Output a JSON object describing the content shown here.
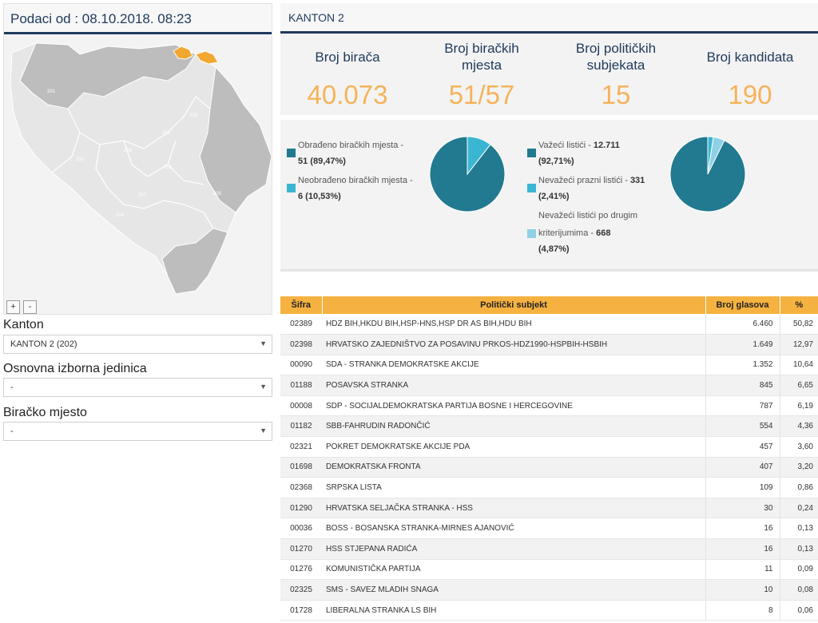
{
  "map": {
    "header": "Podaci od : 08.10.2018. 08:23",
    "zoom_in": "+",
    "zoom_out": "-",
    "region_labels": [
      "201",
      "203",
      "204",
      "205",
      "206",
      "207",
      "208",
      "209",
      "210"
    ],
    "colors": {
      "background": "#f3f3f3",
      "federation": "#e6e6e6",
      "rs": "#bdbdbd",
      "highlight": "#f0a830",
      "border": "#ffffff"
    }
  },
  "filters": {
    "kanton": {
      "label": "Kanton",
      "value": "KANTON 2 (202)"
    },
    "oij": {
      "label": "Osnovna izborna jedinica",
      "value": "-"
    },
    "bm": {
      "label": "Biračko mjesto",
      "value": "-"
    }
  },
  "summary": {
    "title": "KANTON 2",
    "stats": [
      {
        "label": "Broj birača",
        "value": "40.073"
      },
      {
        "label": "Broj biračkih mjesta",
        "value": "51/57"
      },
      {
        "label": "Broj političkih subjekata",
        "value": "15"
      },
      {
        "label": "Broj kandidata",
        "value": "190"
      }
    ]
  },
  "polling_stations": {
    "items": [
      {
        "label": "Obrađeno biračkih mjesta -",
        "value": "51 (89,47%)"
      },
      {
        "label": "Neobrađeno biračkih mjesta -",
        "value": "6 (10,53%)"
      }
    ],
    "colors": [
      "#217a8f",
      "#3bb6d2"
    ]
  },
  "ballots": {
    "items": [
      {
        "label": "Važeći listići -",
        "value": "12.711",
        "pct": "(92,71%)"
      },
      {
        "label": "Nevažeći prazni listići -",
        "value": "331",
        "pct": "(2,41%)"
      },
      {
        "label": "Nevažeći listići po drugim",
        "label2": "kriterijumima -",
        "value": "668",
        "pct": "(4,87%)"
      }
    ],
    "colors": [
      "#217a8f",
      "#3bb6d2",
      "#8fd0e6"
    ]
  },
  "chart_data": [
    {
      "type": "pie",
      "categories": [
        "Obrađeno biračkih mjesta",
        "Neobrađeno biračkih mjesta"
      ],
      "values": [
        51,
        6
      ],
      "percent": [
        89.47,
        10.53
      ]
    },
    {
      "type": "pie",
      "categories": [
        "Važeći listići",
        "Nevažeći prazni listići",
        "Nevažeći listići po drugim kriterijumima"
      ],
      "values": [
        12711,
        331,
        668
      ],
      "percent": [
        92.71,
        2.41,
        4.87
      ]
    }
  ],
  "table": {
    "headers": [
      "Šifra",
      "Politički subjekt",
      "Broj glasova",
      "%"
    ],
    "rows": [
      [
        "02389",
        "HDZ BIH,HKDU BIH,HSP-HNS,HSP DR AS BIH,HDU BIH",
        "6.460",
        "50,82"
      ],
      [
        "02398",
        "HRVATSKO ZAJEDNIŠTVO ZA POSAVINU PRKOS-HDZ1990-HSPBIH-HSBIH",
        "1.649",
        "12,97"
      ],
      [
        "00090",
        "SDA - STRANKA DEMOKRATSKE AKCIJE",
        "1.352",
        "10,64"
      ],
      [
        "01188",
        "POSAVSKA STRANKA",
        "845",
        "6,65"
      ],
      [
        "00008",
        "SDP - SOCIJALDEMOKRATSKA PARTIJA BOSNE I HERCEGOVINE",
        "787",
        "6,19"
      ],
      [
        "01182",
        "SBB-FAHRUDIN RADONČIĆ",
        "554",
        "4,36"
      ],
      [
        "02321",
        "POKRET DEMOKRATSKE AKCIJE PDA",
        "457",
        "3,60"
      ],
      [
        "01698",
        "DEMOKRATSKA FRONTA",
        "407",
        "3,20"
      ],
      [
        "02368",
        "SRPSKA LISTA",
        "109",
        "0,86"
      ],
      [
        "01290",
        "HRVATSKA SELJAČKA STRANKA - HSS",
        "30",
        "0,24"
      ],
      [
        "00036",
        "BOSS - BOSANSKA STRANKA-MIRNES AJANOVIĆ",
        "16",
        "0,13"
      ],
      [
        "01270",
        "HSS STJEPANA RADIĆA",
        "16",
        "0,13"
      ],
      [
        "01276",
        "KOMUNISTIČKA PARTIJA",
        "11",
        "0,09"
      ],
      [
        "02325",
        "SMS - SAVEZ MLADIH SNAGA",
        "10",
        "0,08"
      ],
      [
        "01728",
        "LIBERALNA STRANKA LS BIH",
        "8",
        "0,06"
      ]
    ]
  }
}
